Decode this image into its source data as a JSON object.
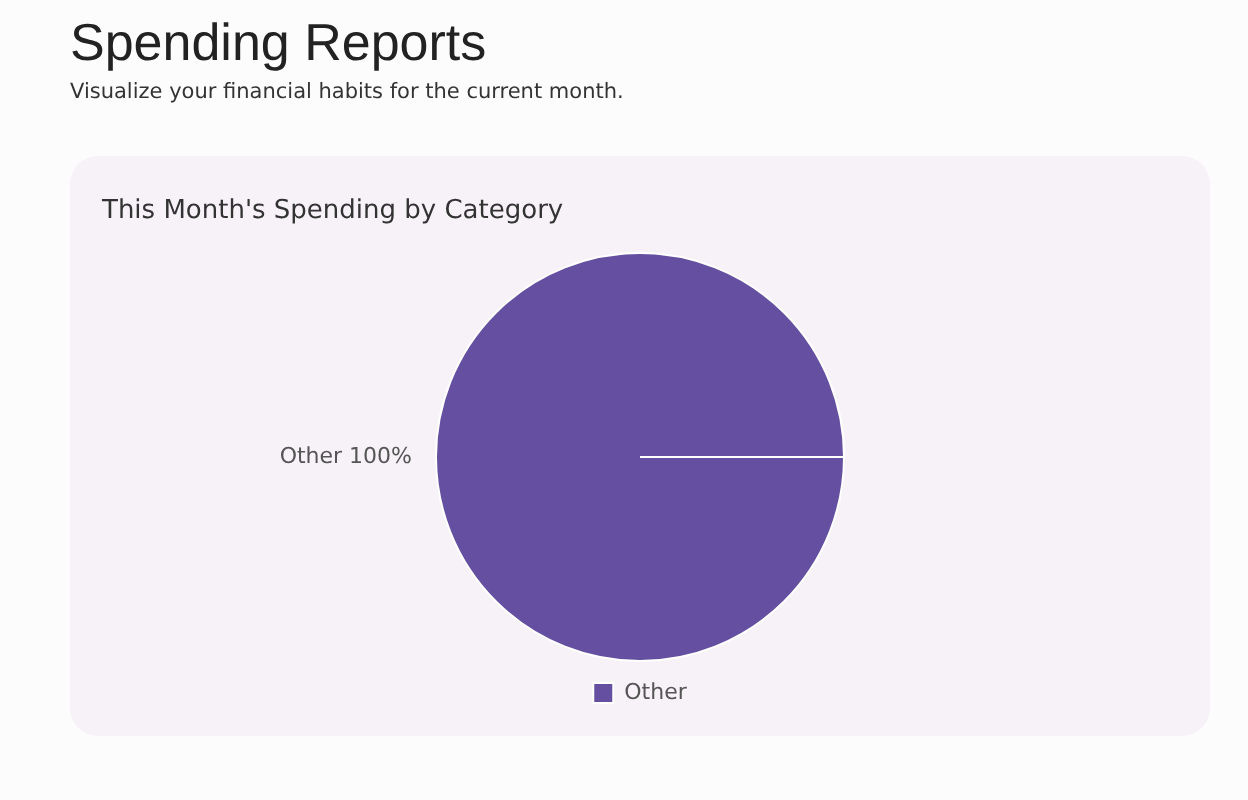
{
  "chart_data": {
    "type": "pie",
    "title": "Spending Reports",
    "subtitle": "Visualize your financial habits for the current month.",
    "annotations": [
      "This Month's Spending by Category"
    ],
    "categories": [
      "Other"
    ],
    "values": [
      100
    ],
    "colors": [
      "#644fa0"
    ],
    "value_labels": [
      "Other 100%"
    ],
    "legend": "bottom"
  }
}
